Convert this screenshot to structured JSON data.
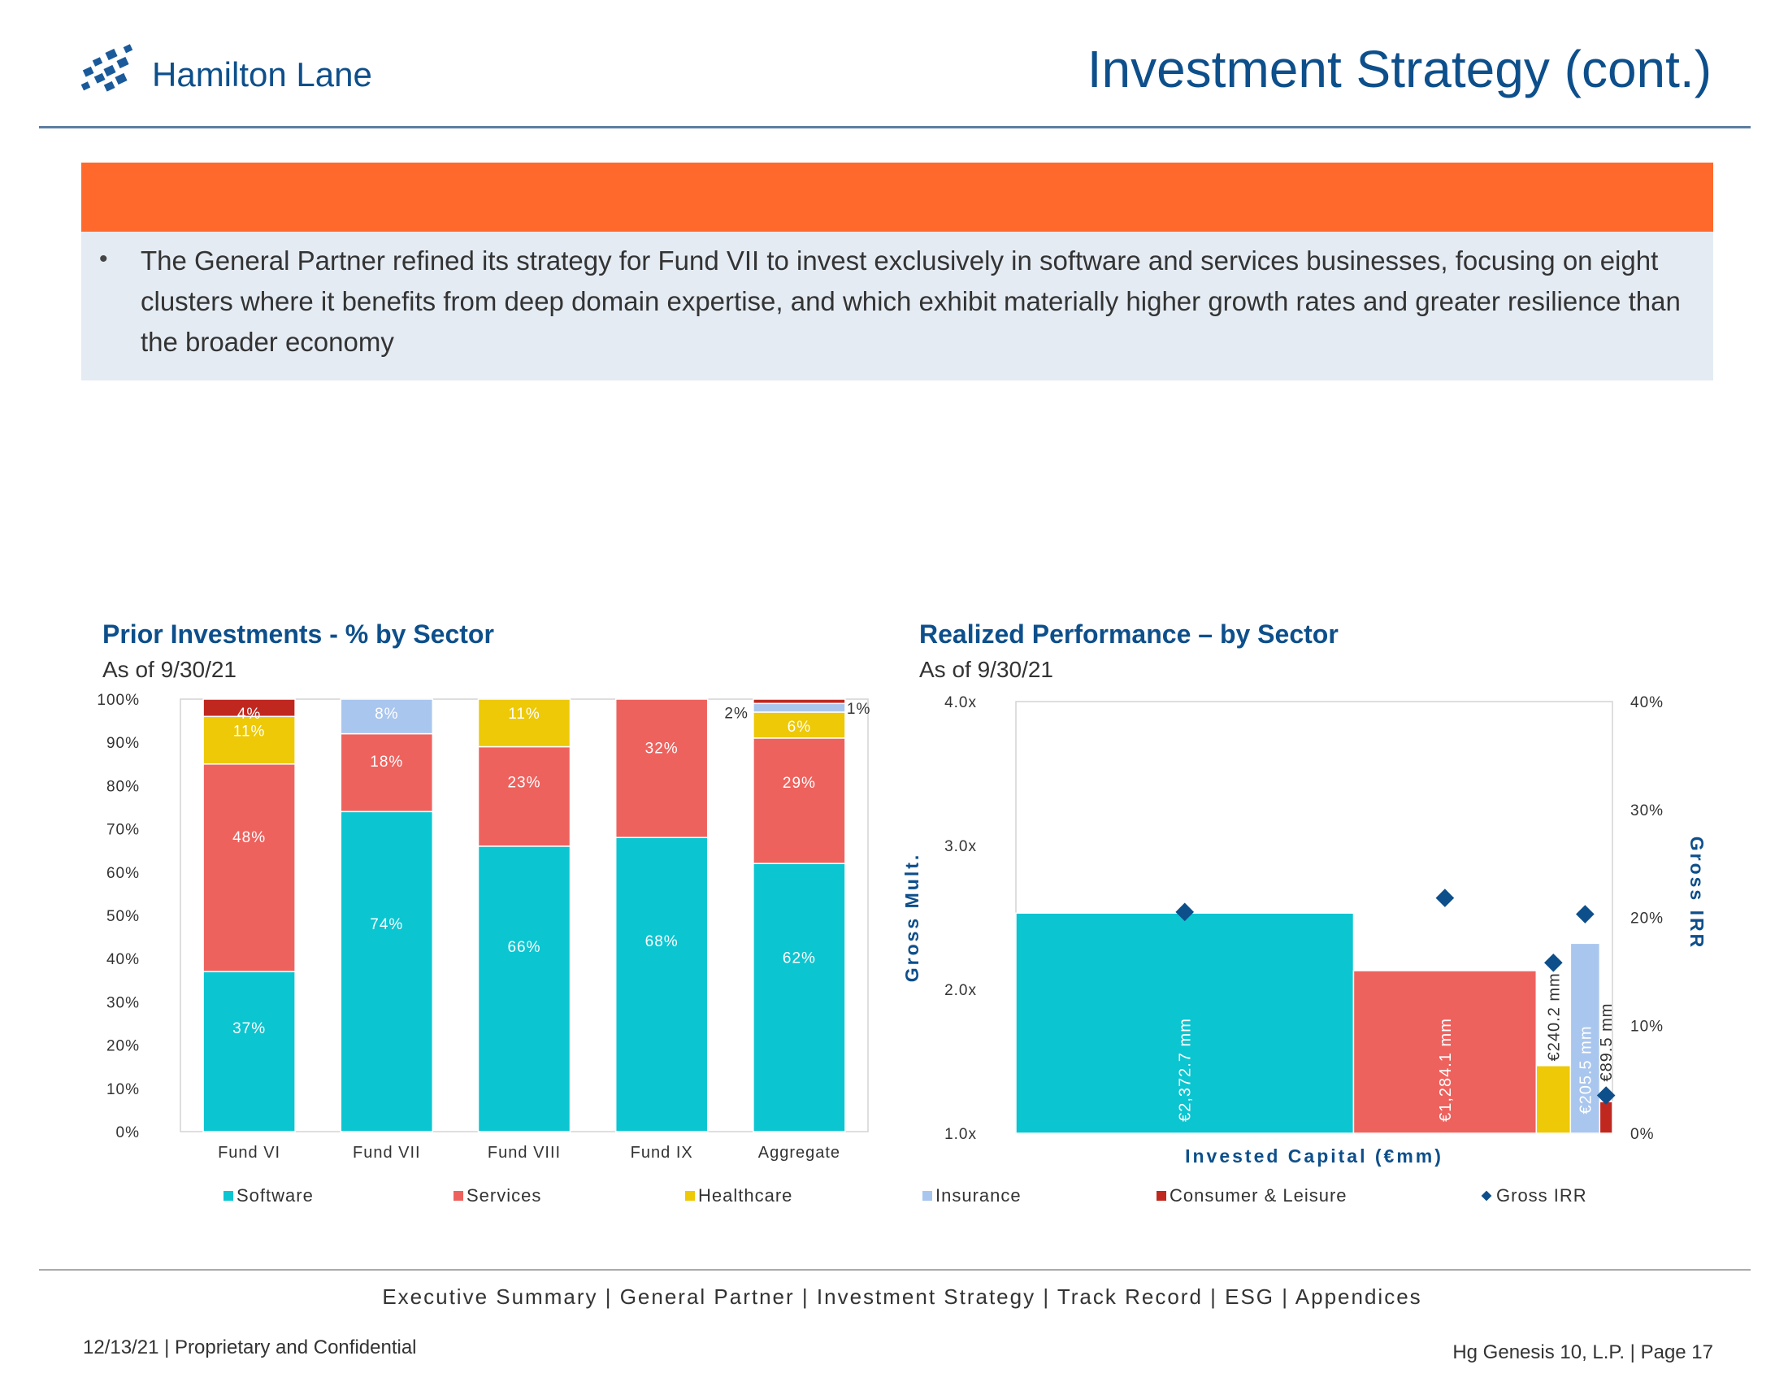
{
  "header": {
    "logo_text": "Hamilton Lane",
    "title": "Investment Strategy (cont.)"
  },
  "summary": {
    "bullet": "•",
    "text": "The General Partner refined its strategy for Fund VII to invest exclusively in software and services businesses, focusing on eight clusters where it benefits from deep domain expertise, and which exhibit materially higher growth rates and greater resilience than the broader economy"
  },
  "left_chart": {
    "title": "Prior Investments - % by Sector",
    "subtitle": "As of 9/30/21"
  },
  "right_chart": {
    "title": "Realized Performance – by Sector",
    "subtitle": "As of 9/30/21"
  },
  "legend": {
    "items": [
      {
        "label": "Software",
        "color": "#0bc5d1",
        "marker": "square"
      },
      {
        "label": "Services",
        "color": "#ee625e",
        "marker": "square"
      },
      {
        "label": "Healthcare",
        "color": "#edc907",
        "marker": "square"
      },
      {
        "label": "Insurance",
        "color": "#a9c6ee",
        "marker": "square"
      },
      {
        "label": "Consumer & Leisure",
        "color": "#c0281f",
        "marker": "square"
      },
      {
        "label": "Gross IRR",
        "color": "#0d4f8b",
        "marker": "diamond"
      }
    ]
  },
  "chart_data": [
    {
      "type": "bar",
      "stacked": true,
      "title": "Prior Investments - % by Sector",
      "subtitle": "As of 9/30/21",
      "categories": [
        "Fund VI",
        "Fund VII",
        "Fund VIII",
        "Fund IX",
        "Aggregate"
      ],
      "ylim": [
        0,
        100
      ],
      "yticks": [
        "0%",
        "10%",
        "20%",
        "30%",
        "40%",
        "50%",
        "60%",
        "70%",
        "80%",
        "90%",
        "100%"
      ],
      "series": [
        {
          "name": "Software",
          "color": "#0bc5d1",
          "values": [
            37,
            74,
            66,
            68,
            62
          ],
          "labels": [
            "37%",
            "74%",
            "66%",
            "68%",
            "62%"
          ]
        },
        {
          "name": "Services",
          "color": "#ee625e",
          "values": [
            48,
            18,
            23,
            32,
            29
          ],
          "labels": [
            "48%",
            "18%",
            "23%",
            "32%",
            "29%"
          ]
        },
        {
          "name": "Healthcare",
          "color": "#edc907",
          "values": [
            11,
            0,
            11,
            0,
            6
          ],
          "labels": [
            "11%",
            "",
            "11%",
            "",
            "6%"
          ]
        },
        {
          "name": "Insurance",
          "color": "#a9c6ee",
          "values": [
            0,
            8,
            0,
            0,
            2
          ],
          "labels": [
            "",
            "8%",
            "",
            "",
            "2%"
          ]
        },
        {
          "name": "Consumer & Leisure",
          "color": "#c0281f",
          "values": [
            4,
            0,
            0,
            0,
            1
          ],
          "labels": [
            "4%",
            "",
            "",
            "",
            "1%"
          ]
        }
      ]
    },
    {
      "type": "bar",
      "variable_width": true,
      "title": "Realized Performance – by Sector",
      "subtitle": "As of 9/30/21",
      "xlabel": "Invested Capital (€mm)",
      "ylabel": "Gross Mult.",
      "y2label": "Gross IRR",
      "ylim": [
        1.0,
        4.0
      ],
      "yticks": [
        "1.0x",
        "2.0x",
        "3.0x",
        "4.0x"
      ],
      "y2lim": [
        0,
        40
      ],
      "y2ticks": [
        "0%",
        "10%",
        "20%",
        "30%",
        "40%"
      ],
      "sectors": [
        "Software",
        "Services",
        "Healthcare",
        "Insurance",
        "Consumer & Leisure"
      ],
      "colors": [
        "#0bc5d1",
        "#ee625e",
        "#edc907",
        "#a9c6ee",
        "#c0281f"
      ],
      "invested_capital": [
        2372.7,
        1284.1,
        240.2,
        205.5,
        89.5
      ],
      "capital_labels": [
        "€2,372.7 mm",
        "€1,284.1 mm",
        "€240.2 mm",
        "€205.5 mm",
        "€89.5 mm"
      ],
      "gross_multiple": [
        2.53,
        2.13,
        1.47,
        2.32,
        1.22
      ],
      "gross_irr": [
        20.5,
        21.8,
        15.8,
        20.3,
        3.5
      ]
    }
  ],
  "footer": {
    "nav": "Executive Summary | General Partner | Investment Strategy | Track Record | ESG | Appendices",
    "left": "12/13/21 | Proprietary and Confidential",
    "right": "Hg Genesis 10, L.P. | Page 17"
  }
}
